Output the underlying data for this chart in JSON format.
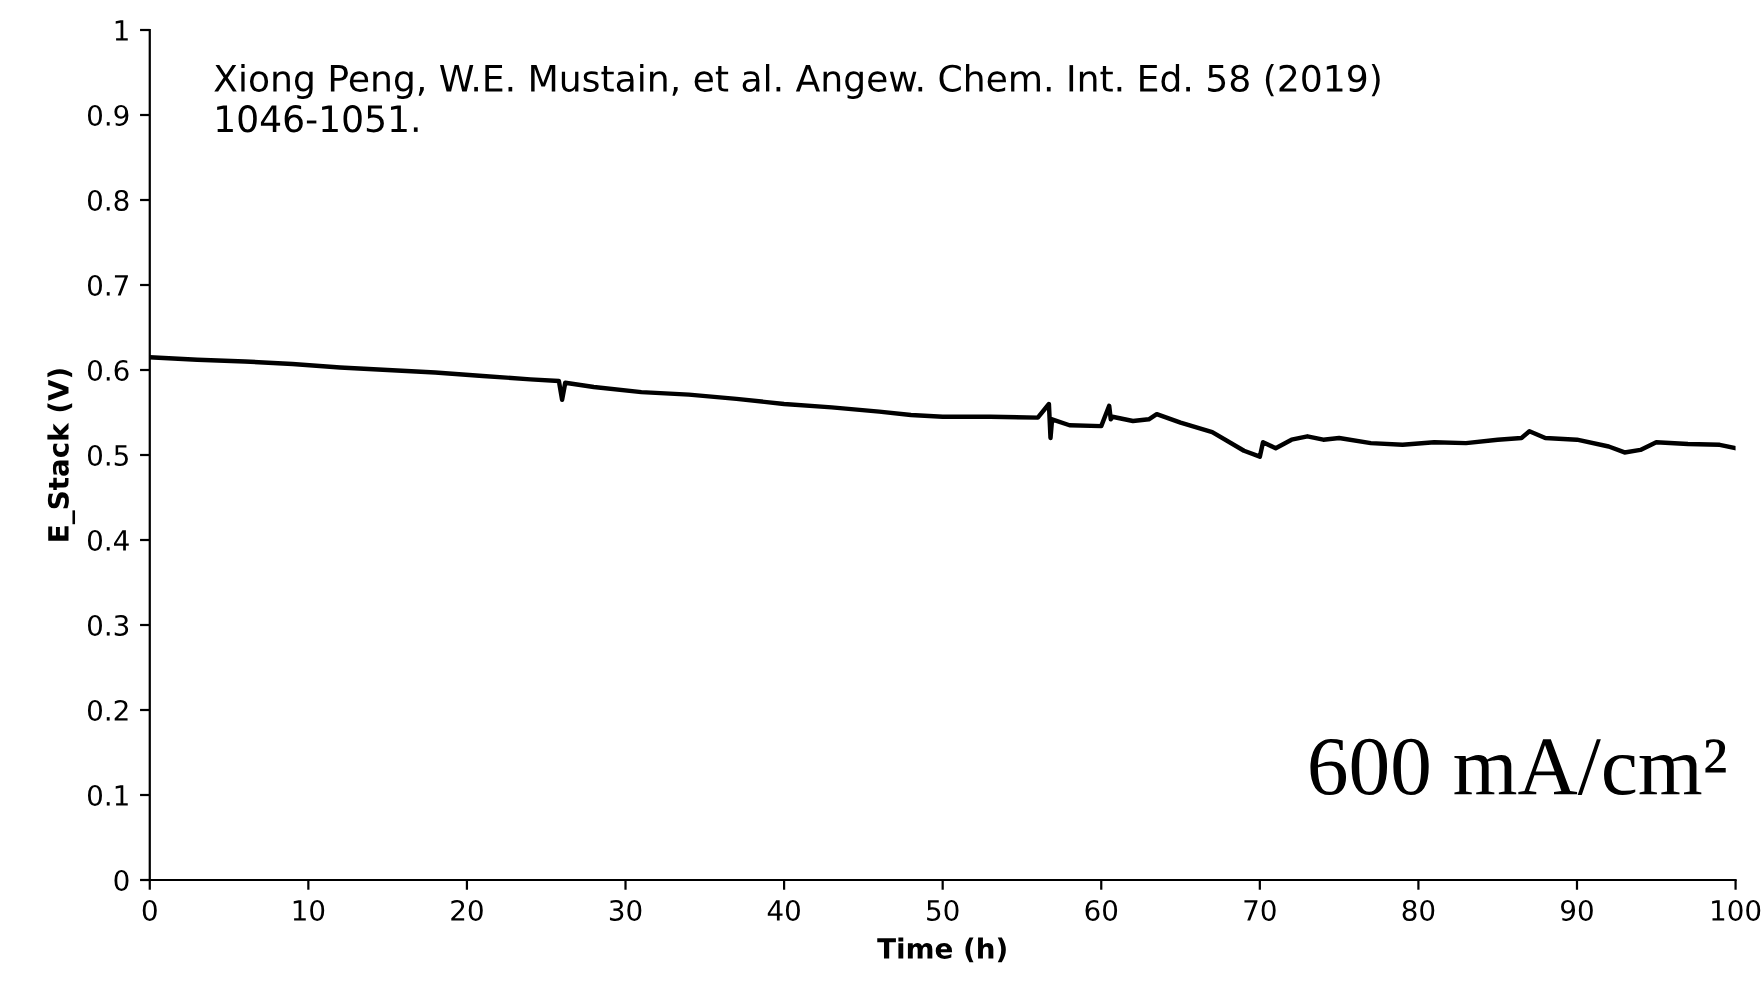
{
  "chart_data": {
    "type": "line",
    "xlabel": "Time (h)",
    "ylabel": "E_Stack (V)",
    "x": [
      0,
      3,
      6,
      9,
      12,
      15,
      18,
      21,
      24,
      25.8,
      26,
      26.2,
      28,
      31,
      34,
      37,
      40,
      43,
      46,
      48,
      50,
      53,
      56,
      56.7,
      56.8,
      56.9,
      58,
      60,
      60.5,
      60.6,
      60.7,
      62,
      63,
      63.5,
      65,
      67,
      69,
      70,
      70.2,
      71,
      72,
      73,
      74,
      75,
      77,
      79,
      81,
      83,
      85,
      86.5,
      87,
      88,
      90,
      92,
      93,
      94,
      95,
      97,
      99,
      100
    ],
    "series": [
      {
        "color": "#000000",
        "values": [
          0.615,
          0.612,
          0.61,
          0.607,
          0.603,
          0.6,
          0.597,
          0.593,
          0.589,
          0.587,
          0.565,
          0.585,
          0.58,
          0.574,
          0.571,
          0.566,
          0.56,
          0.556,
          0.551,
          0.547,
          0.545,
          0.545,
          0.544,
          0.56,
          0.52,
          0.542,
          0.535,
          0.534,
          0.558,
          0.542,
          0.545,
          0.54,
          0.542,
          0.548,
          0.538,
          0.527,
          0.505,
          0.498,
          0.515,
          0.508,
          0.518,
          0.522,
          0.518,
          0.52,
          0.514,
          0.512,
          0.515,
          0.514,
          0.518,
          0.52,
          0.528,
          0.52,
          0.518,
          0.51,
          0.503,
          0.506,
          0.515,
          0.513,
          0.512,
          0.508
        ]
      }
    ],
    "xlim": [
      0,
      100
    ],
    "xticks": [
      0,
      10,
      20,
      30,
      40,
      50,
      60,
      70,
      80,
      90,
      100
    ],
    "ylim": [
      0,
      1
    ],
    "yticks": [
      0,
      0.1,
      0.2,
      0.3,
      0.4,
      0.5,
      0.6,
      0.7,
      0.8,
      0.9,
      1
    ],
    "grid": false,
    "legend": false,
    "line_style": "solid",
    "marker": "none",
    "annotations": [
      "Xiong Peng, W.E. Mustain, et al. Angew. Chem. Int. Ed. 58 (2019) 1046-1051.",
      "600 mA/cm²"
    ]
  }
}
